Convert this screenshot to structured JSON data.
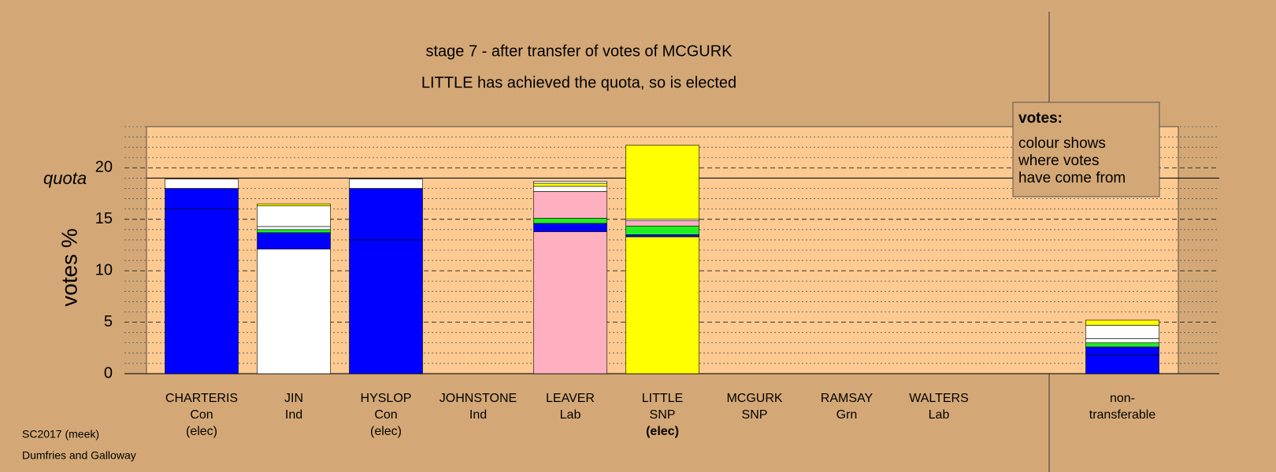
{
  "chart_data": {
    "type": "stacked-bar",
    "title": "stage 7 - after transfer of votes of MCGURK",
    "subtitle": "LITTLE has achieved the quota, so is elected",
    "y_label": "votes %",
    "ylim": [
      0,
      24
    ],
    "yticks": [
      0,
      5,
      10,
      15,
      20
    ],
    "minor_yticks": [
      1,
      2,
      3,
      4,
      6,
      7,
      8,
      9,
      11,
      12,
      13,
      14,
      16,
      17,
      18,
      19,
      21,
      22,
      23,
      24
    ],
    "quota": {
      "label": "quota",
      "value": 19.0
    },
    "categories": [
      {
        "lines": [
          "CHARTERIS",
          "Con",
          "(elec)"
        ]
      },
      {
        "lines": [
          "JIN",
          "Ind"
        ]
      },
      {
        "lines": [
          "HYSLOP",
          "Con",
          "(elec)"
        ]
      },
      {
        "lines": [
          "JOHNSTONE",
          "Ind"
        ]
      },
      {
        "lines": [
          "LEAVER",
          "Lab"
        ]
      },
      {
        "lines": [
          "LITTLE",
          "SNP",
          "(elec)"
        ],
        "bold_line": 2
      },
      {
        "lines": [
          "MCGURK",
          "SNP"
        ]
      },
      {
        "lines": [
          "RAMSAY",
          "Grn"
        ]
      },
      {
        "lines": [
          "WALTERS",
          "Lab"
        ]
      },
      {
        "lines": [
          "non-",
          "transferable"
        ]
      }
    ],
    "stacks": [
      [
        {
          "value": 16.0,
          "color": "#0000ff"
        },
        {
          "value": 2.0,
          "color": "#0000ff"
        },
        {
          "value": 0.9,
          "color": "#ffffff"
        }
      ],
      [
        {
          "value": 12.1,
          "color": "#ffffff"
        },
        {
          "value": 1.6,
          "color": "#0000ff"
        },
        {
          "value": 0.3,
          "color": "#22ee22"
        },
        {
          "value": 0.3,
          "color": "#ffffff"
        },
        {
          "value": 2.0,
          "color": "#ffffff"
        },
        {
          "value": 0.2,
          "color": "#ffff00"
        }
      ],
      [
        {
          "value": 13.0,
          "color": "#0000ff"
        },
        {
          "value": 5.0,
          "color": "#0000ff"
        },
        {
          "value": 0.9,
          "color": "#ffffff"
        }
      ],
      [
        {
          "value": 0,
          "color": "#ffffff"
        }
      ],
      [
        {
          "value": 13.8,
          "color": "#ffb0c0"
        },
        {
          "value": 0.8,
          "color": "#0000ff"
        },
        {
          "value": 0.5,
          "color": "#22ee22"
        },
        {
          "value": 2.6,
          "color": "#ffb0c0"
        },
        {
          "value": 0.5,
          "color": "#ffffff"
        },
        {
          "value": 0.3,
          "color": "#ffff00"
        },
        {
          "value": 0.2,
          "color": "#ffffff"
        }
      ],
      [
        {
          "value": 13.3,
          "color": "#ffff00"
        },
        {
          "value": 0.2,
          "color": "#0000ff"
        },
        {
          "value": 0.85,
          "color": "#22ee22"
        },
        {
          "value": 0.5,
          "color": "#ffb0c0"
        },
        {
          "value": 0.15,
          "color": "#ffffff"
        },
        {
          "value": 7.2,
          "color": "#ffff00"
        }
      ],
      [
        {
          "value": 0,
          "color": "#ffffff"
        }
      ],
      [
        {
          "value": 0,
          "color": "#ffffff"
        }
      ],
      [
        {
          "value": 0,
          "color": "#ffffff"
        }
      ],
      [
        {
          "value": 1.8,
          "color": "#0000ff"
        },
        {
          "value": 0.8,
          "color": "#0000ff"
        },
        {
          "value": 0.4,
          "color": "#22ee22"
        },
        {
          "value": 0.4,
          "color": "#ffffff"
        },
        {
          "value": 1.3,
          "color": "#ffffff"
        },
        {
          "value": 0.5,
          "color": "#ffff00"
        }
      ]
    ],
    "note": {
      "title": "votes:",
      "lines": [
        "colour shows",
        "where votes",
        "have come from"
      ]
    },
    "footer": [
      "SC2017 (meek)",
      "Dumfries and Galloway"
    ]
  }
}
